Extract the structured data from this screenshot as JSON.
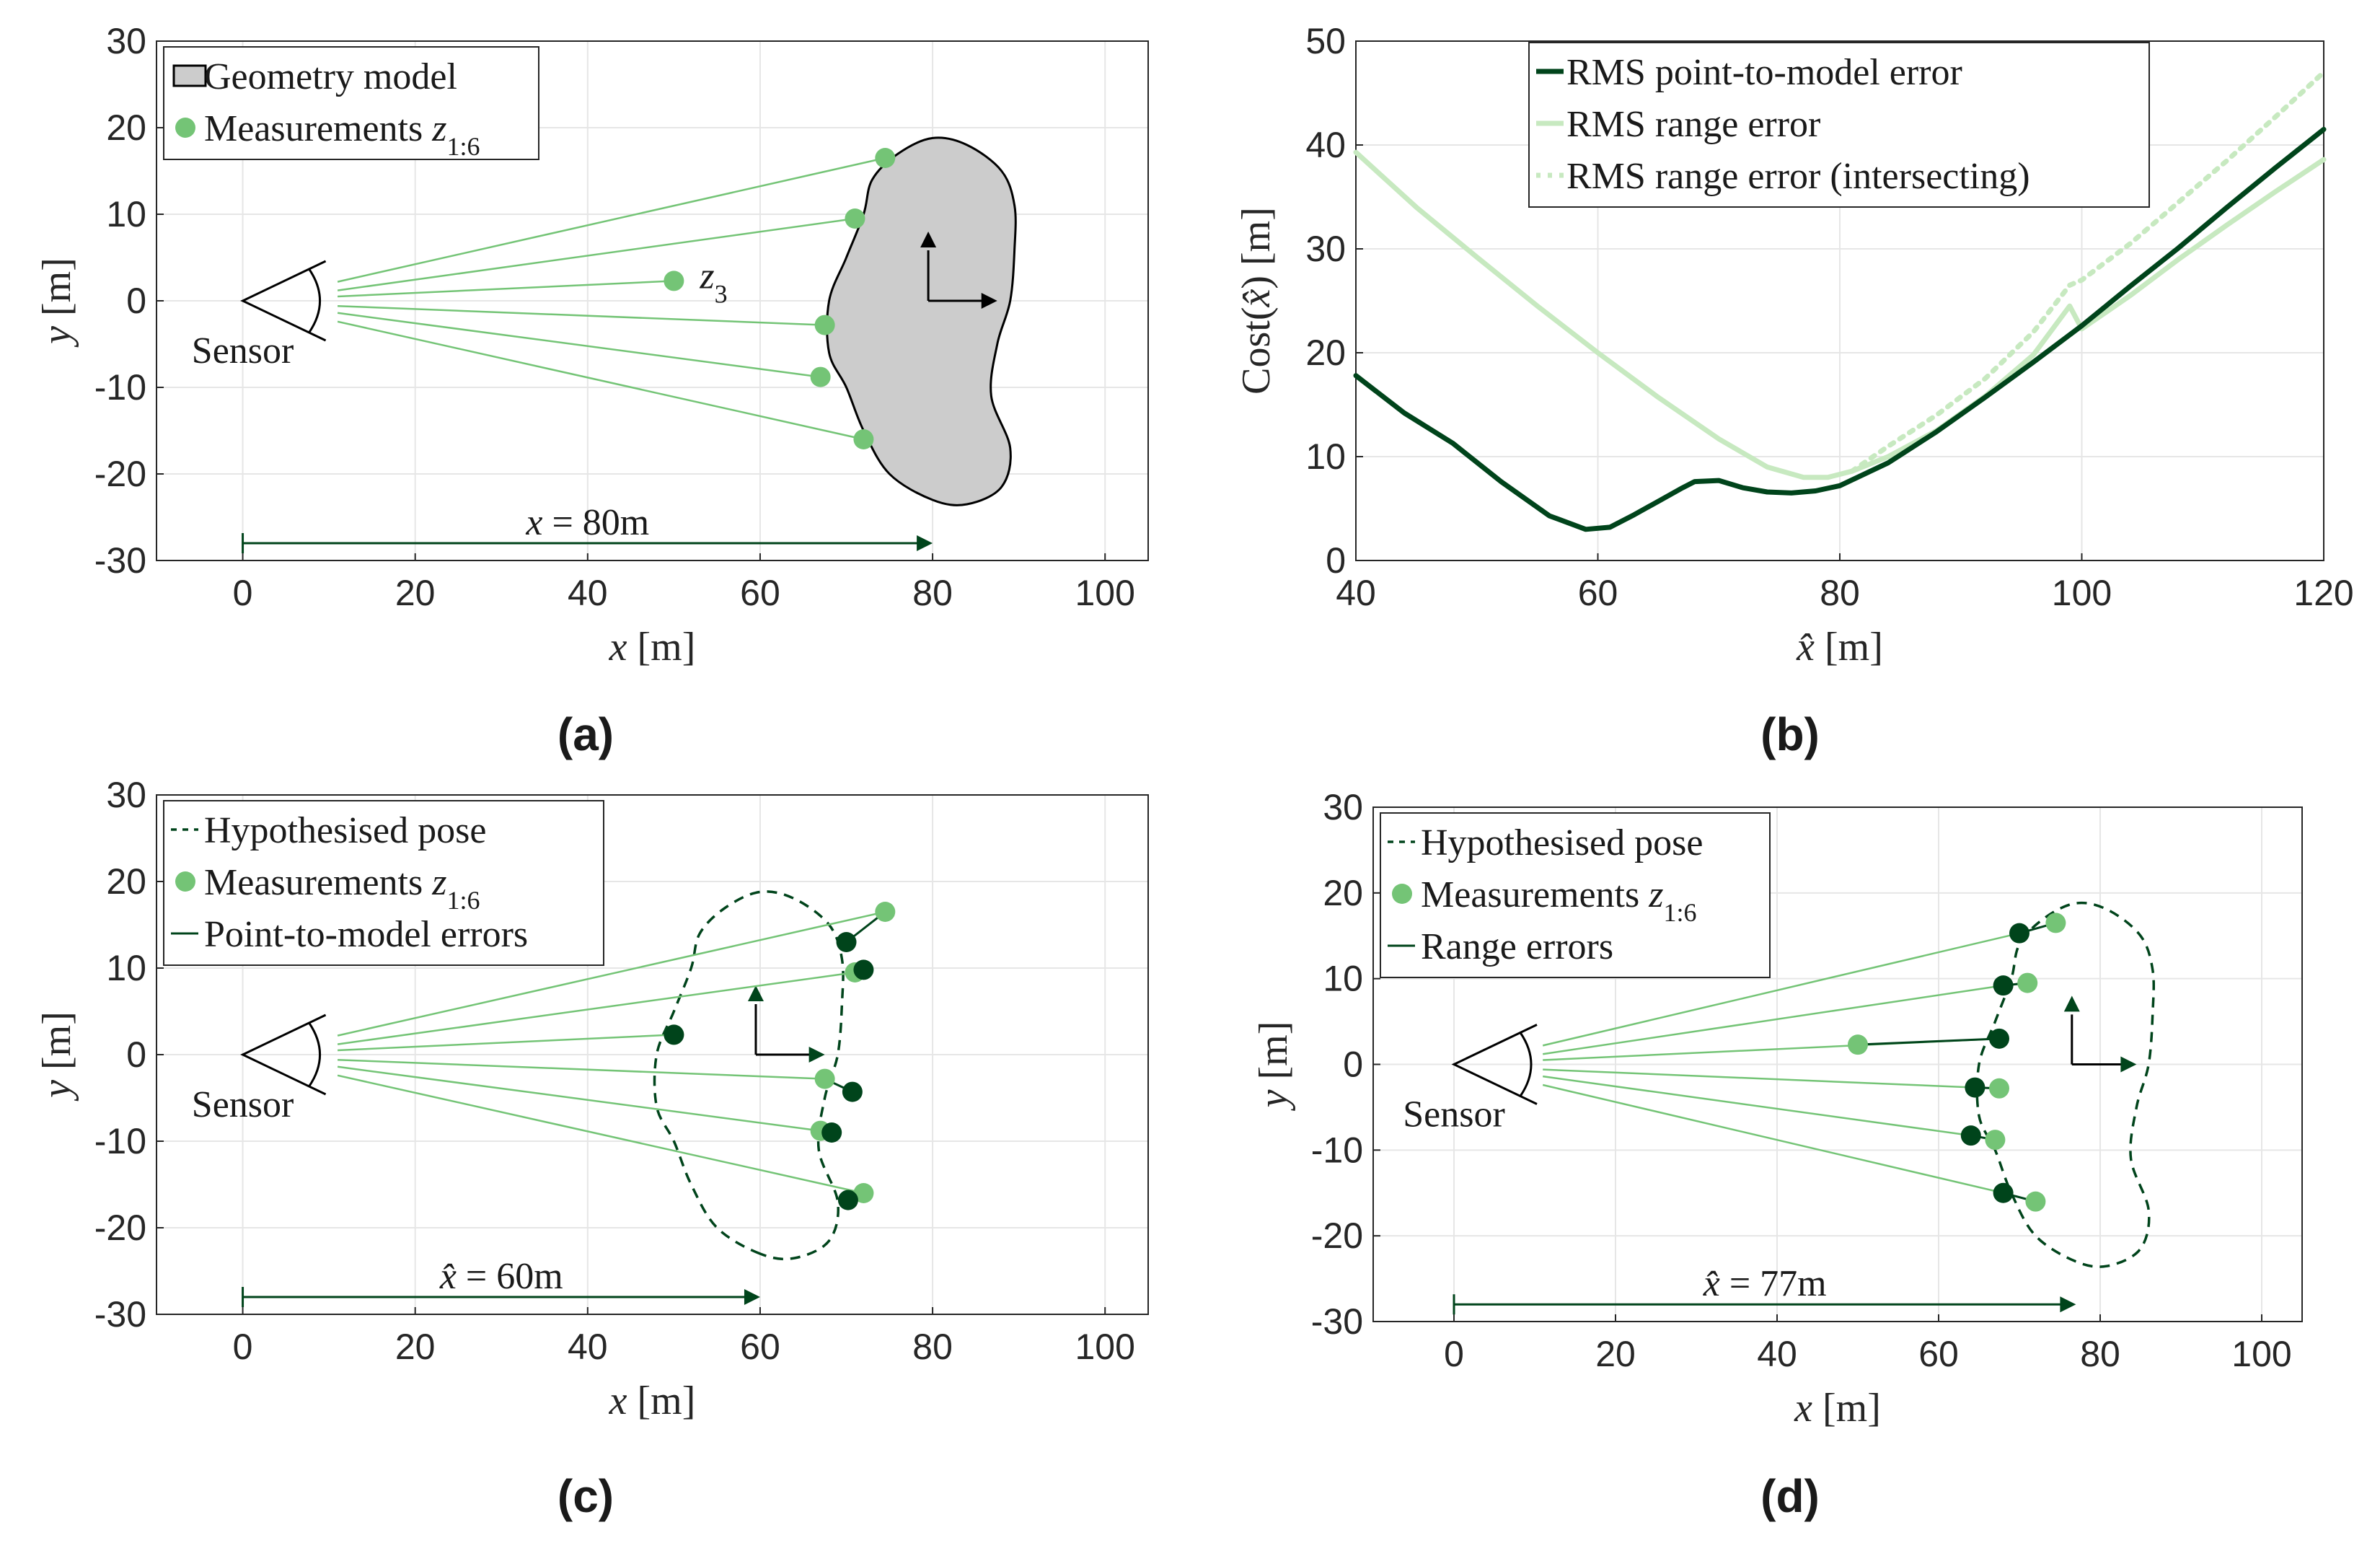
{
  "colors": {
    "dark_green": "#00441b",
    "light_green": "#74c476",
    "pale_green": "#c7e9c0",
    "geometry_fill": "#cccccc"
  },
  "chart_data": [
    {
      "id": "a",
      "type": "scatter",
      "panel_label": "(a)",
      "xlabel": "x [m]",
      "ylabel": "y [m]",
      "xlim": [
        -10,
        105
      ],
      "ylim": [
        -30,
        30
      ],
      "xticks": [
        "0",
        "20",
        "40",
        "60",
        "80",
        "100"
      ],
      "yticks": [
        "30",
        "20",
        "10",
        "0",
        "-10",
        "-20",
        "-30"
      ],
      "grid": true,
      "legend": {
        "position": "top-left",
        "entries": [
          "Geometry model",
          "Measurements z1:6"
        ]
      },
      "sensor_label": "Sensor",
      "z3_label": "z3",
      "distance_label": "x = 80m",
      "pose": {
        "x": 80,
        "y": 0
      },
      "measurements": [
        [
          74.5,
          16.5
        ],
        [
          71,
          9.5
        ],
        [
          50,
          2.3
        ],
        [
          67.5,
          -2.8
        ],
        [
          67,
          -8.8
        ],
        [
          72,
          -16
        ]
      ]
    },
    {
      "id": "b",
      "type": "line",
      "panel_label": "(b)",
      "xlabel": "x̂ [m]",
      "ylabel": "Cost(x̂) [m]",
      "xlim": [
        40,
        120
      ],
      "ylim": [
        0,
        50
      ],
      "xticks": [
        "40",
        "60",
        "80",
        "100",
        "120"
      ],
      "yticks": [
        "50",
        "40",
        "30",
        "20",
        "10",
        "0"
      ],
      "grid": true,
      "legend": {
        "position": "top-center",
        "entries": [
          "RMS point-to-model error",
          "RMS range error",
          "RMS range error (intersecting)"
        ]
      },
      "series": [
        {
          "name": "RMS point-to-model error",
          "style": "solid-dark",
          "x": [
            40,
            44,
            48,
            52,
            56,
            59,
            61,
            63,
            65,
            67,
            68,
            70,
            72,
            74,
            76,
            78,
            80,
            84,
            88,
            92,
            96,
            100,
            104,
            108,
            112,
            116,
            120
          ],
          "y": [
            17.8,
            14.2,
            11.3,
            7.6,
            4.3,
            3.0,
            3.2,
            4.4,
            5.7,
            7.0,
            7.6,
            7.7,
            7.0,
            6.6,
            6.5,
            6.7,
            7.2,
            9.4,
            12.4,
            15.7,
            19.1,
            22.6,
            26.4,
            30.1,
            34.0,
            37.8,
            41.5
          ]
        },
        {
          "name": "RMS range error",
          "style": "solid-pale",
          "x": [
            40,
            45,
            50,
            55,
            60,
            65,
            70,
            74,
            77,
            79,
            81,
            84,
            88,
            92,
            96,
            99,
            100,
            104,
            108,
            112,
            116,
            120
          ],
          "y": [
            39.3,
            34.0,
            29.2,
            24.5,
            20.0,
            15.7,
            11.7,
            9.0,
            8.0,
            8.0,
            8.6,
            10.0,
            12.5,
            15.8,
            19.8,
            24.5,
            22.3,
            25.5,
            29.0,
            32.3,
            35.5,
            38.6
          ]
        },
        {
          "name": "RMS range error (intersecting)",
          "style": "dotted-pale",
          "x": [
            81,
            84,
            88,
            92,
            96,
            99,
            100,
            104,
            108,
            112,
            116,
            120
          ],
          "y": [
            8.6,
            11.0,
            14.0,
            17.5,
            22.0,
            26.5,
            27.0,
            30.5,
            34.5,
            38.5,
            42.7,
            47.0
          ]
        }
      ]
    },
    {
      "id": "c",
      "type": "scatter",
      "panel_label": "(c)",
      "xlabel": "x [m]",
      "ylabel": "y [m]",
      "xlim": [
        -10,
        105
      ],
      "ylim": [
        -30,
        30
      ],
      "xticks": [
        "0",
        "20",
        "40",
        "60",
        "80",
        "100"
      ],
      "yticks": [
        "30",
        "20",
        "10",
        "0",
        "-10",
        "-20",
        "-30"
      ],
      "grid": true,
      "legend": {
        "position": "top-left",
        "entries": [
          "Hypothesised pose",
          "Measurements z1:6",
          "Point-to-model errors"
        ]
      },
      "sensor_label": "Sensor",
      "distance_label": "x̂ = 60m",
      "pose": {
        "x": 60,
        "y": 0
      },
      "measurements": [
        [
          74.5,
          16.5
        ],
        [
          71,
          9.5
        ],
        [
          50,
          2.3
        ],
        [
          67.5,
          -2.8
        ],
        [
          67,
          -8.8
        ],
        [
          72,
          -16
        ]
      ],
      "model_points": [
        [
          70,
          13
        ],
        [
          72,
          9.8
        ],
        [
          50,
          2.3
        ],
        [
          70.7,
          -4.3
        ],
        [
          68.3,
          -9
        ],
        [
          70.2,
          -16.8
        ]
      ]
    },
    {
      "id": "d",
      "type": "scatter",
      "panel_label": "(d)",
      "xlabel": "x [m]",
      "ylabel": "y [m]",
      "xlim": [
        -10,
        105
      ],
      "ylim": [
        -30,
        30
      ],
      "xticks": [
        "0",
        "20",
        "40",
        "60",
        "80",
        "100"
      ],
      "yticks": [
        "30",
        "20",
        "10",
        "0",
        "-10",
        "-20",
        "-30"
      ],
      "grid": true,
      "legend": {
        "position": "top-left",
        "entries": [
          "Hypothesised pose",
          "Measurements z1:6",
          "Range errors"
        ]
      },
      "sensor_label": "Sensor",
      "distance_label": "x̂ = 77m",
      "pose": {
        "x": 77,
        "y": 0
      },
      "measurements": [
        [
          74.5,
          16.5
        ],
        [
          71,
          9.5
        ],
        [
          50,
          2.3
        ],
        [
          67.5,
          -2.8
        ],
        [
          67,
          -8.8
        ],
        [
          72,
          -16
        ]
      ],
      "model_points": [
        [
          70,
          15.3
        ],
        [
          68,
          9.2
        ],
        [
          67.5,
          3
        ],
        [
          64.5,
          -2.7
        ],
        [
          64,
          -8.3
        ],
        [
          68,
          -15
        ]
      ]
    }
  ]
}
